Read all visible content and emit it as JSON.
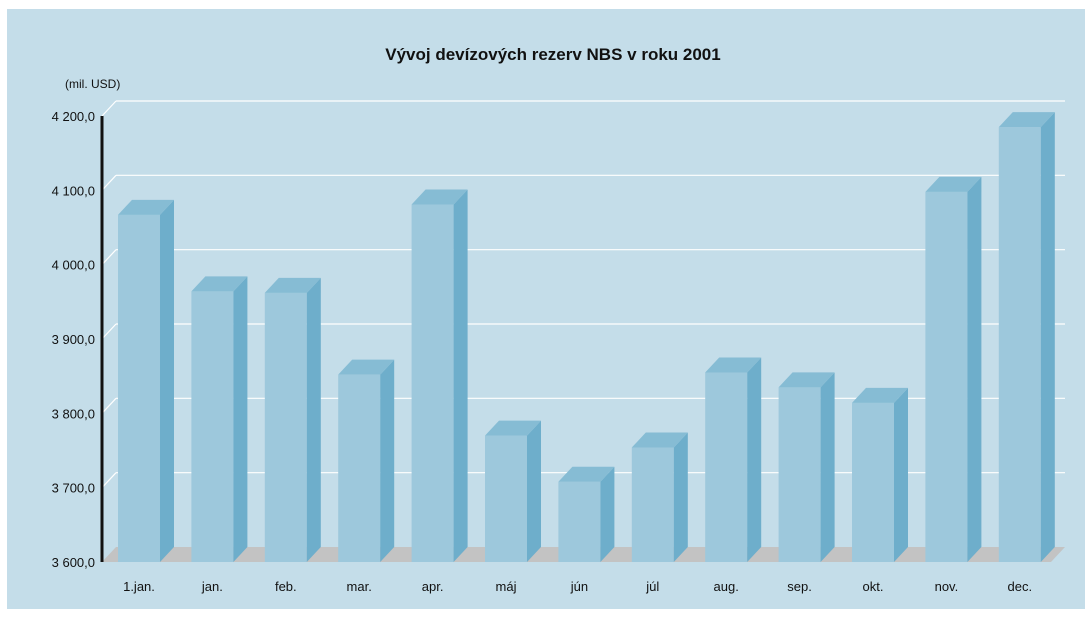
{
  "colors": {
    "panel_bg": "#c4dde9",
    "bar_front": "#9dc8dc",
    "bar_side": "#6eaecb",
    "bar_top": "#86bcd4",
    "floor": "#c3c3c3",
    "gridline": "#ffffff",
    "axis": "#111111"
  },
  "chart_data": {
    "type": "bar",
    "title": "Vývoj devízových rezerv NBS v roku 2001",
    "unit_label": "(mil. USD)",
    "xlabel": "",
    "ylabel": "",
    "ylim": [
      3600,
      4200
    ],
    "y_tick_values": [
      3600,
      3700,
      3800,
      3900,
      4000,
      4100,
      4200
    ],
    "y_tick_labels": [
      "3 600,0",
      "3 700,0",
      "3 800,0",
      "3 900,0",
      "4 000,0",
      "4 100,0",
      "4 200,0"
    ],
    "categories": [
      "1.jan.",
      "jan.",
      "feb.",
      "mar.",
      "apr.",
      "máj",
      "jún",
      "júl",
      "aug.",
      "sep.",
      "okt.",
      "nov.",
      "dec."
    ],
    "values": [
      4067,
      3964,
      3962,
      3852,
      4081,
      3770,
      3708,
      3754,
      3855,
      3835,
      3814,
      4098,
      4185
    ],
    "grid": true,
    "legend": "none",
    "style": "3d-columns"
  }
}
